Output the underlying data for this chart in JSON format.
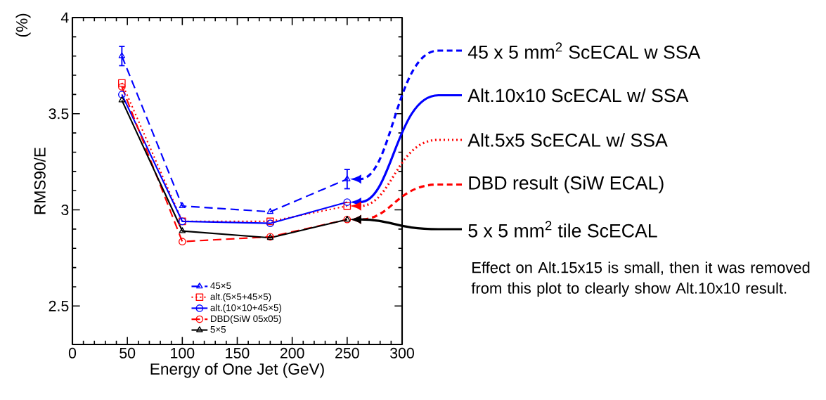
{
  "chart_data": {
    "type": "line",
    "xlabel": "Energy of One Jet (GeV)",
    "ylabel": "RMS90/E",
    "x": [
      45,
      100,
      180,
      250
    ],
    "xlim": [
      0,
      300
    ],
    "xticks": [
      0,
      50,
      100,
      150,
      200,
      250,
      300
    ],
    "ylim": [
      2.3,
      4
    ],
    "yticks": [
      2.5,
      3,
      3.5,
      4
    ],
    "grid": false,
    "legend": "bottom",
    "series": [
      {
        "name": "45×5",
        "color": "#0000ff",
        "marker": "triangle",
        "line_style": "dashed",
        "values": [
          3.8,
          3.02,
          2.99,
          3.16
        ],
        "errors": [
          0.05,
          null,
          null,
          0.05
        ]
      },
      {
        "name": "alt.(5×5+45×5)",
        "color": "#ff0000",
        "marker": "square",
        "line_style": "dotted",
        "values": [
          3.66,
          2.94,
          2.94,
          3.02
        ]
      },
      {
        "name": "alt.(10×10+45×5)",
        "color": "#0000ff",
        "marker": "circle",
        "line_style": "solid",
        "values": [
          3.6,
          2.94,
          2.93,
          3.04
        ]
      },
      {
        "name": "DBD(SiW 05x05)",
        "color": "#ff0000",
        "marker": "circle",
        "line_style": "dashed",
        "values": [
          3.64,
          2.835,
          2.86,
          2.95
        ]
      },
      {
        "name": "5×5",
        "color": "#000000",
        "marker": "triangle",
        "line_style": "solid",
        "values": [
          3.57,
          2.89,
          2.855,
          2.95
        ]
      }
    ],
    "annotations": [
      "(%)",
      "45 x 5 mm$^{2}$ ScECAL w SSA",
      "Alt.10x10 ScECAL w/ SSA",
      "Alt.5x5 ScECAL w/ SSA",
      "DBD result (SiW ECAL)",
      "5 x 5 mm$^{2}$ tile ScECAL",
      "Effect on Alt.15x15 is small, then it was removed from this plot to clearly show Alt.10x10 result."
    ]
  }
}
